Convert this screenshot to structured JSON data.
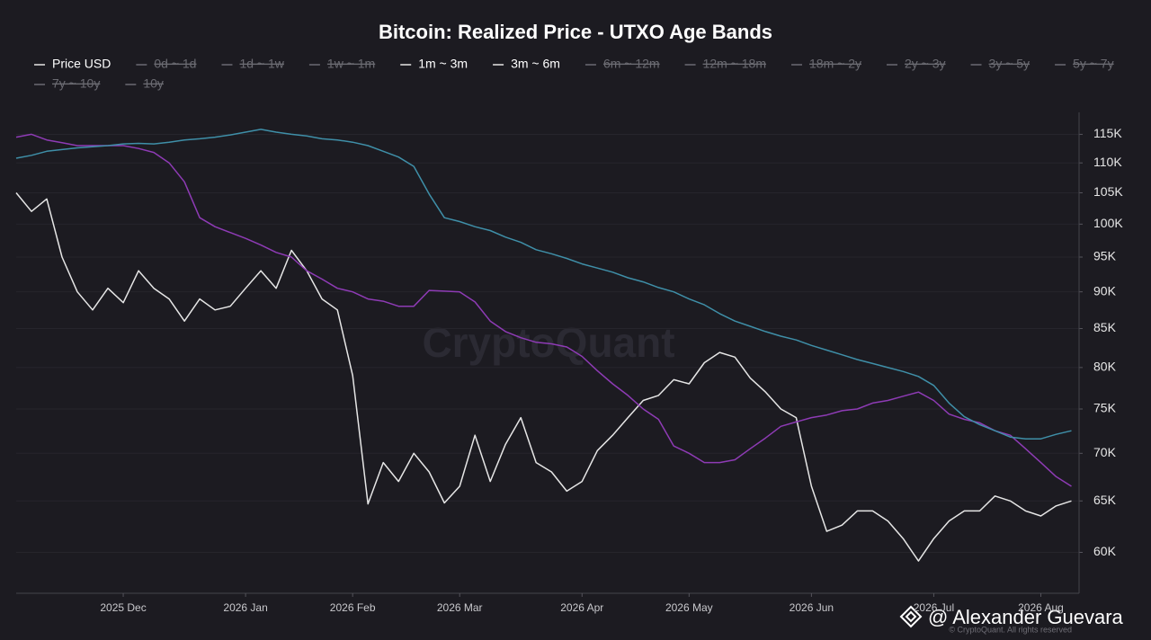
{
  "chart_data": {
    "type": "line",
    "title": "Bitcoin: Realized Price - UTXO Age Bands",
    "watermark": "CryptoQuant",
    "copyright": "© CryptoQuant. All rights reserved",
    "credit": "@ Alexander Guevara",
    "log_scale": true,
    "grid": true,
    "legend": "top",
    "ylim": [
      56300,
      119000
    ],
    "yticks": [
      {
        "value": 60000,
        "label": "60K"
      },
      {
        "value": 65000,
        "label": "65K"
      },
      {
        "value": 70000,
        "label": "70K"
      },
      {
        "value": 75000,
        "label": "75K"
      },
      {
        "value": 80000,
        "label": "80K"
      },
      {
        "value": 85000,
        "label": "85K"
      },
      {
        "value": 90000,
        "label": "90K"
      },
      {
        "value": 95000,
        "label": "95K"
      },
      {
        "value": 100000,
        "label": "100K"
      },
      {
        "value": 105000,
        "label": "105K"
      },
      {
        "value": 110000,
        "label": "110K"
      },
      {
        "value": 115000,
        "label": "115K"
      }
    ],
    "categories": [
      null,
      null,
      null,
      null,
      null,
      null,
      null,
      "2025 Dec",
      null,
      null,
      null,
      null,
      null,
      null,
      null,
      "2026 Jan",
      null,
      null,
      null,
      null,
      null,
      null,
      "2026 Feb",
      null,
      null,
      null,
      null,
      null,
      null,
      "2026 Mar",
      null,
      null,
      null,
      null,
      null,
      null,
      null,
      "2026 Apr",
      null,
      null,
      null,
      null,
      null,
      null,
      "2026 May",
      null,
      null,
      null,
      null,
      null,
      null,
      null,
      "2026 Jun",
      null,
      null,
      null,
      null,
      null,
      null,
      null,
      "2026 Jul",
      null,
      null,
      null,
      null,
      null,
      null,
      "2026 Aug",
      null,
      null
    ],
    "series": [
      {
        "name": "Price USD",
        "color": "#e6e6e6",
        "visible": true,
        "values": [
          105000,
          102000,
          104000,
          95000,
          90000,
          87500,
          90500,
          88500,
          93000,
          90500,
          89000,
          86000,
          89000,
          87500,
          88000,
          90500,
          93000,
          90500,
          96000,
          93000,
          89000,
          87500,
          79000,
          64700,
          69000,
          67000,
          70000,
          68000,
          64800,
          66500,
          72000,
          67000,
          71000,
          74000,
          69000,
          68000,
          66000,
          67000,
          70300,
          72000,
          74000,
          76000,
          76600,
          78500,
          78000,
          80600,
          81900,
          81300,
          78700,
          77000,
          75000,
          74000,
          66500,
          62000,
          62600,
          64000,
          64000,
          63000,
          61300,
          59200,
          61300,
          63000,
          64000,
          64000,
          65500,
          65000,
          64000,
          63500,
          64500,
          65000
        ]
      },
      {
        "name": "0d ~ 1d",
        "color": "#6b6b72",
        "visible": false
      },
      {
        "name": "1d ~ 1w",
        "color": "#6b6b72",
        "visible": false
      },
      {
        "name": "1w ~ 1m",
        "color": "#6b6b72",
        "visible": false
      },
      {
        "name": "1m ~ 3m",
        "color": "#8e3bb5",
        "visible": true,
        "values": [
          114500,
          115000,
          114000,
          113500,
          113000,
          113000,
          113000,
          113000,
          112500,
          111800,
          110000,
          106800,
          101000,
          99600,
          98700,
          97800,
          96800,
          95700,
          95000,
          93000,
          91800,
          90500,
          90000,
          89000,
          88700,
          88000,
          88000,
          90200,
          90100,
          90000,
          88600,
          86000,
          84600,
          83800,
          83200,
          83000,
          82600,
          81400,
          79600,
          78000,
          76600,
          75000,
          73800,
          70800,
          70000,
          69000,
          69000,
          69300,
          70500,
          71700,
          73000,
          73500,
          74000,
          74300,
          74800,
          75000,
          75700,
          76000,
          76500,
          77000,
          76000,
          74400,
          73800,
          73400,
          72500,
          72000,
          70500,
          69000,
          67500,
          66500
        ]
      },
      {
        "name": "3m ~ 6m",
        "color": "#3f8fa8",
        "visible": true,
        "values": [
          110800,
          111300,
          112000,
          112300,
          112600,
          112800,
          113000,
          113300,
          113400,
          113300,
          113600,
          114000,
          114200,
          114500,
          114900,
          115400,
          115900,
          115400,
          115000,
          114700,
          114200,
          114000,
          113600,
          113000,
          112000,
          111000,
          109400,
          104800,
          101000,
          100400,
          99600,
          99000,
          98000,
          97200,
          96100,
          95500,
          94800,
          94000,
          93400,
          92800,
          92000,
          91400,
          90600,
          90000,
          89000,
          88200,
          87000,
          86000,
          85300,
          84600,
          84000,
          83500,
          82800,
          82200,
          81600,
          81000,
          80500,
          80000,
          79500,
          78900,
          77800,
          75700,
          74100,
          73200,
          72500,
          71800,
          71600,
          71600,
          72100,
          72500
        ]
      },
      {
        "name": "6m ~ 12m",
        "color": "#6b6b72",
        "visible": false
      },
      {
        "name": "12m ~ 18m",
        "color": "#6b6b72",
        "visible": false
      },
      {
        "name": "18m ~ 2y",
        "color": "#6b6b72",
        "visible": false
      },
      {
        "name": "2y ~ 3y",
        "color": "#6b6b72",
        "visible": false
      },
      {
        "name": "3y ~ 5y",
        "color": "#6b6b72",
        "visible": false
      },
      {
        "name": "5y ~ 7y",
        "color": "#6b6b72",
        "visible": false
      },
      {
        "name": "7y ~ 10y",
        "color": "#6b6b72",
        "visible": false
      },
      {
        "name": "10y",
        "color": "#6b6b72",
        "visible": false
      }
    ]
  }
}
